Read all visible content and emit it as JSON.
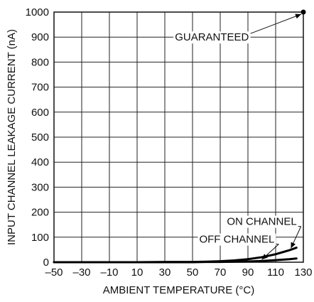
{
  "chart_data": {
    "type": "line",
    "xlabel": "AMBIENT TEMPERATURE (°C)",
    "ylabel": "INPUT CHANNEL LEAKAGE CURRENT (nA)",
    "xlim": [
      -50,
      130
    ],
    "ylim": [
      0,
      1000
    ],
    "x_ticks": [
      -50,
      -30,
      -10,
      10,
      30,
      50,
      70,
      90,
      110,
      130
    ],
    "x_tick_labels": [
      "–50",
      "–30",
      "–10",
      "10",
      "30",
      "50",
      "70",
      "90",
      "110",
      "130"
    ],
    "y_ticks": [
      0,
      100,
      200,
      300,
      400,
      500,
      600,
      700,
      800,
      900,
      1000
    ],
    "y_tick_labels": [
      "0",
      "100",
      "200",
      "300",
      "400",
      "500",
      "600",
      "700",
      "800",
      "900",
      "1000"
    ],
    "grid": true,
    "series": [
      {
        "name": "ON CHANNEL",
        "x": [
          -50,
          -30,
          -10,
          10,
          30,
          50,
          60,
          70,
          80,
          90,
          100,
          110,
          120,
          125
        ],
        "y": [
          0,
          0,
          0,
          0,
          1,
          1,
          2,
          4,
          7,
          12,
          20,
          32,
          48,
          58
        ]
      },
      {
        "name": "OFF CHANNEL",
        "x": [
          -50,
          -30,
          -10,
          10,
          30,
          50,
          60,
          70,
          80,
          90,
          100,
          110,
          120,
          125
        ],
        "y": [
          0,
          0,
          0,
          0,
          0,
          0,
          1,
          1,
          2,
          3,
          5,
          8,
          12,
          15
        ]
      }
    ],
    "points": [
      {
        "name": "GUARANTEED",
        "x": 130,
        "y": 1000
      }
    ],
    "annotations": [
      {
        "text": "GUARANTEED",
        "target": "GUARANTEED",
        "label_x": 64,
        "label_y": 900
      },
      {
        "text": "ON CHANNEL",
        "target": "ON CHANNEL",
        "label_x": 100,
        "label_y": 163
      },
      {
        "text": "OFF CHANNEL",
        "target": "OFF CHANNEL",
        "label_x": 82,
        "label_y": 92
      }
    ]
  }
}
